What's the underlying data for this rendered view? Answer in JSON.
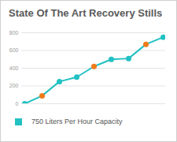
{
  "chart_data": {
    "type": "line",
    "title": "State Of The Art Recovery Stills",
    "categories": [
      null,
      null,
      null,
      null,
      null,
      null,
      null,
      null,
      null
    ],
    "series": [
      {
        "name": "750 Liters Per Hour Capacity",
        "color": "#22c1c3",
        "values": [
          0,
          90,
          250,
          300,
          420,
          500,
          510,
          670,
          750
        ],
        "marker": "circle",
        "colors": [
          "#22c1c3",
          "#f07b1a",
          "#22c1c3",
          "#22c1c3",
          "#f07b1a",
          "#22c1c3",
          "#22c1c3",
          "#f07b1a",
          "#22c1c3"
        ]
      }
    ],
    "ylim": [
      0,
      800
    ],
    "yticks": [
      0,
      200,
      400,
      600,
      800
    ],
    "grid": true,
    "tick_labels": "y",
    "legend": "bottom"
  }
}
